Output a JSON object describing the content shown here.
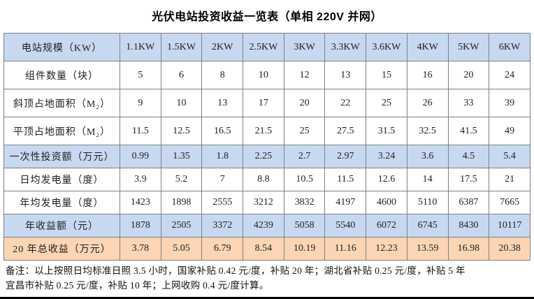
{
  "title": "光伏电站投资收益一览表（单相 220V 并网）",
  "colors": {
    "highlight_blue": "#c6d9f1",
    "highlight_peach": "#fcd5b4",
    "border": "#808080"
  },
  "chart_data": {
    "type": "table",
    "title": "光伏电站投资收益一览表（单相 220V 并网）",
    "rows": [
      {
        "label": "电站规模（KW）",
        "highlight": "blue",
        "values": [
          "1.1KW",
          "1.5KW",
          "2KW",
          "2.5KW",
          "3KW",
          "3.3KW",
          "3.6KW",
          "4KW",
          "5KW",
          "6KW"
        ]
      },
      {
        "label": "组件数量（块）",
        "highlight": "none",
        "values": [
          "5",
          "6",
          "8",
          "10",
          "12",
          "13",
          "15",
          "16",
          "20",
          "24"
        ]
      },
      {
        "label": "斜顶占地面积（M₂）",
        "highlight": "none",
        "values": [
          "9",
          "10",
          "13",
          "17",
          "20",
          "22",
          "25",
          "26",
          "33",
          "39"
        ]
      },
      {
        "label": "平顶占地面积（M₂）",
        "highlight": "none",
        "values": [
          "11.5",
          "12.5",
          "16.5",
          "21.5",
          "25",
          "27.5",
          "31.5",
          "32.5",
          "41.5",
          "49"
        ]
      },
      {
        "label": "一次性投资额（万元）",
        "highlight": "blue",
        "values": [
          "0.99",
          "1.35",
          "1.8",
          "2.25",
          "2.7",
          "2.97",
          "3.24",
          "3.6",
          "4.5",
          "5.4"
        ]
      },
      {
        "label": "日均发电量（度）",
        "highlight": "none",
        "values": [
          "3.9",
          "5.2",
          "7",
          "8.8",
          "10.5",
          "11.5",
          "12.6",
          "14",
          "17.5",
          "21"
        ]
      },
      {
        "label": "年均发电量（度）",
        "highlight": "none",
        "values": [
          "1423",
          "1898",
          "2555",
          "3212",
          "3832",
          "4197",
          "4600",
          "5110",
          "6387",
          "7665"
        ]
      },
      {
        "label": "年收益额（元）",
        "highlight": "blue",
        "values": [
          "1878",
          "2505",
          "3372",
          "4239",
          "5058",
          "5540",
          "6072",
          "6745",
          "8430",
          "10117"
        ]
      },
      {
        "label": "20 年总收益（万元）",
        "highlight": "peach",
        "values": [
          "3.78",
          "5.05",
          "6.79",
          "8.54",
          "10.19",
          "11.16",
          "12.23",
          "13.59",
          "16.98",
          "20.38"
        ]
      }
    ]
  },
  "notes": {
    "line1": "备注：以上按照日均标准日照 3.5 小时，国家补贴 0.42 元/度，补贴 20 年；湖北省补贴 0.25 元/度，补贴 5 年",
    "line2": "宜昌市补贴 0.25 元/度，补贴 10 年；上网收购 0.4 元/度计算。"
  }
}
